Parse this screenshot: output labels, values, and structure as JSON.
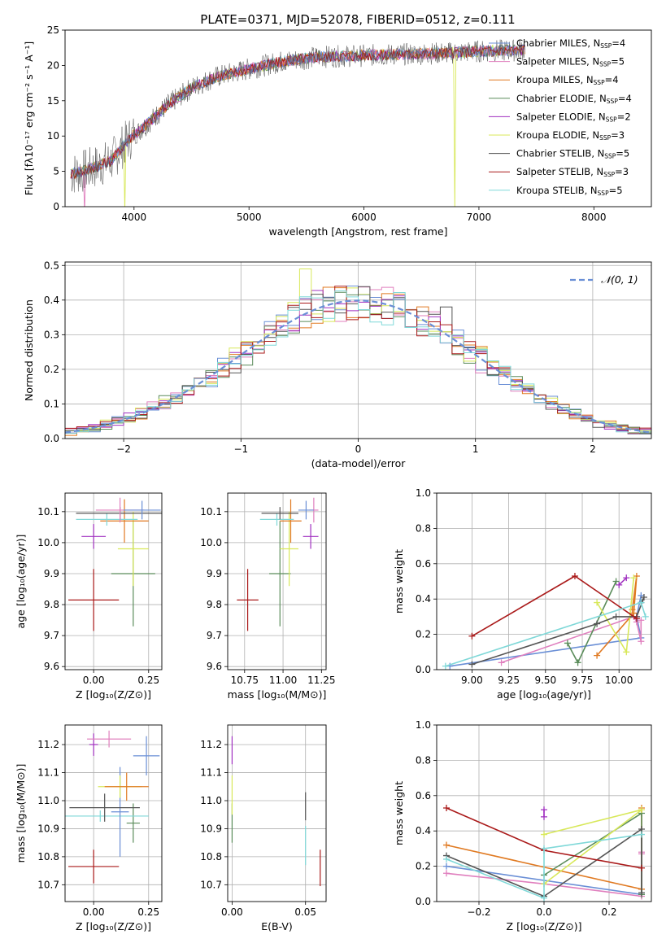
{
  "title": "PLATE=0371, MJD=52078, FIBERID=0512, z=0.111",
  "colors": {
    "Chabrier MILES": "#6a8fd6",
    "Salpeter MILES": "#e07fbe",
    "Kroupa MILES": "#e07a22",
    "Chabrier ELODIE": "#5a8c5a",
    "Salpeter ELODIE": "#a030c0",
    "Kroupa ELODIE": "#d8e85a",
    "Chabrier STELIB": "#555555",
    "Salpeter STELIB": "#aa1a1a",
    "Kroupa STELIB": "#7fd8d8"
  },
  "chart_data": [
    {
      "id": "spectrum",
      "type": "line",
      "xlabel": "wavelength [Angstrom, rest frame]",
      "ylabel": "Flux [fλ10⁻¹⁷ erg cm⁻² s⁻¹ A⁻¹]",
      "xlim": [
        3400,
        8500
      ],
      "ylim": [
        0,
        25
      ],
      "xticks": [
        4000,
        5000,
        6000,
        7000,
        8000
      ],
      "yticks": [
        0,
        5,
        10,
        15,
        20,
        25
      ],
      "grid": false,
      "legend": "upper right",
      "legend_entries": [
        {
          "label": "Chabrier MILES, N",
          "sub": "SSP",
          "suffix": "=4",
          "model": "Chabrier MILES"
        },
        {
          "label": "Salpeter MILES, N",
          "sub": "SSP",
          "suffix": "=5",
          "model": "Salpeter MILES"
        },
        {
          "label": "Kroupa MILES, N",
          "sub": "SSP",
          "suffix": "=4",
          "model": "Kroupa MILES"
        },
        {
          "label": "Chabrier ELODIE, N",
          "sub": "SSP",
          "suffix": "=4",
          "model": "Chabrier ELODIE"
        },
        {
          "label": "Salpeter ELODIE, N",
          "sub": "SSP",
          "suffix": "=2",
          "model": "Salpeter ELODIE"
        },
        {
          "label": "Kroupa ELODIE, N",
          "sub": "SSP",
          "suffix": "=3",
          "model": "Kroupa ELODIE"
        },
        {
          "label": "Chabrier STELIB, N",
          "sub": "SSP",
          "suffix": "=5",
          "model": "Chabrier STELIB"
        },
        {
          "label": "Salpeter STELIB, N",
          "sub": "SSP",
          "suffix": "=3",
          "model": "Salpeter STELIB"
        },
        {
          "label": "Kroupa STELIB, N",
          "sub": "SSP",
          "suffix": "=5",
          "model": "Kroupa STELIB"
        }
      ],
      "continuum": {
        "x": [
          3450,
          3600,
          3800,
          3950,
          4100,
          4300,
          4500,
          4700,
          5000,
          5300,
          5600,
          6000,
          6400,
          6800,
          7000,
          7200,
          7400
        ],
        "y": [
          4.6,
          5.2,
          6.5,
          9.5,
          11.5,
          14.5,
          16.8,
          18.3,
          19.5,
          20.6,
          21.2,
          21.4,
          21.6,
          21.8,
          22.0,
          22.1,
          22.2
        ]
      },
      "drops": [
        {
          "model": "Salpeter MILES",
          "x": 3570
        },
        {
          "model": "Kroupa ELODIE",
          "x": 3920
        },
        {
          "model": "Kroupa ELODIE",
          "x": 6790
        },
        {
          "model": "Salpeter STELIB",
          "x": 7410
        }
      ]
    },
    {
      "id": "residuals",
      "type": "histogram",
      "xlabel": "(data-model)/error",
      "ylabel": "Normed distribution",
      "xlim": [
        -2.5,
        2.5
      ],
      "ylim": [
        0,
        0.51
      ],
      "xticks": [
        -2,
        -1,
        0,
        1,
        2
      ],
      "yticks": [
        0.0,
        0.1,
        0.2,
        0.3,
        0.4,
        0.5
      ],
      "grid": true,
      "legend": "upper right",
      "reference_curve": {
        "label": "𝒩(0, 1)",
        "color": "#6a8fd6",
        "style": "dashed"
      },
      "bin_width": 0.1,
      "hist_peaks": [
        {
          "model": "Kroupa ELODIE",
          "x": -0.45,
          "y": 0.49
        },
        {
          "model": "Salpeter MILES",
          "x": 0.15,
          "y": 0.43
        },
        {
          "model": "Chabrier STELIB",
          "x": 0.75,
          "y": 0.38
        }
      ]
    },
    {
      "id": "age_vs_Z",
      "type": "errorbar",
      "xlabel": "Z [log₁₀(Z/Z⊙)]",
      "ylabel": "age  [log₁₀(age/yr)]",
      "xlim": [
        -0.13,
        0.31
      ],
      "ylim": [
        9.59,
        10.16
      ],
      "xticks": [
        0.0,
        0.25
      ],
      "yticks": [
        9.6,
        9.7,
        9.8,
        9.9,
        10.0,
        10.1
      ],
      "grid": true,
      "points": [
        {
          "model": "Salpeter STELIB",
          "x": 0.0,
          "y": 9.815,
          "xerr": 0.115,
          "yerr": 0.1
        },
        {
          "model": "Chabrier ELODIE",
          "x": 0.18,
          "y": 9.9,
          "xerr": 0.1,
          "yerr": 0.17
        },
        {
          "model": "Kroupa ELODIE",
          "x": 0.18,
          "y": 9.98,
          "xerr": 0.07,
          "yerr": 0.12
        },
        {
          "model": "Salpeter ELODIE",
          "x": 0.0,
          "y": 10.02,
          "xerr": 0.055,
          "yerr": 0.04
        },
        {
          "model": "Kroupa MILES",
          "x": 0.14,
          "y": 10.07,
          "xerr": 0.11,
          "yerr": 0.07
        },
        {
          "model": "Kroupa STELIB",
          "x": 0.06,
          "y": 10.075,
          "xerr": 0.14,
          "yerr": 0.02
        },
        {
          "model": "Chabrier STELIB",
          "x": 0.12,
          "y": 10.095,
          "xerr": 0.2,
          "yerr": 0.02
        },
        {
          "model": "Salpeter MILES",
          "x": 0.12,
          "y": 10.105,
          "xerr": 0.11,
          "yerr": 0.04
        },
        {
          "model": "Chabrier MILES",
          "x": 0.22,
          "y": 10.105,
          "xerr": 0.085,
          "yerr": 0.03
        }
      ]
    },
    {
      "id": "age_vs_mass",
      "type": "errorbar",
      "xlabel": "mass [log₁₀(M/M⊙)]",
      "ylabel": "",
      "xlim": [
        10.64,
        11.28
      ],
      "ylim": [
        9.59,
        10.16
      ],
      "xticks": [
        10.75,
        11.0,
        11.25
      ],
      "yticks": [
        9.6,
        9.7,
        9.8,
        9.9,
        10.0,
        10.1
      ],
      "grid": true,
      "points": [
        {
          "model": "Salpeter STELIB",
          "x": 10.77,
          "y": 9.815,
          "xerr": 0.07,
          "yerr": 0.1
        },
        {
          "model": "Chabrier ELODIE",
          "x": 10.98,
          "y": 9.9,
          "xerr": 0.07,
          "yerr": 0.17
        },
        {
          "model": "Kroupa ELODIE",
          "x": 11.04,
          "y": 9.98,
          "xerr": 0.06,
          "yerr": 0.12
        },
        {
          "model": "Salpeter ELODIE",
          "x": 11.18,
          "y": 10.02,
          "xerr": 0.05,
          "yerr": 0.04
        },
        {
          "model": "Kroupa MILES",
          "x": 11.05,
          "y": 10.07,
          "xerr": 0.07,
          "yerr": 0.07
        },
        {
          "model": "Kroupa STELIB",
          "x": 10.96,
          "y": 10.075,
          "xerr": 0.11,
          "yerr": 0.02
        },
        {
          "model": "Chabrier STELIB",
          "x": 10.98,
          "y": 10.095,
          "xerr": 0.12,
          "yerr": 0.02
        },
        {
          "model": "Salpeter MILES",
          "x": 11.2,
          "y": 10.105,
          "xerr": 0.03,
          "yerr": 0.04
        },
        {
          "model": "Chabrier MILES",
          "x": 11.15,
          "y": 10.105,
          "xerr": 0.05,
          "yerr": 0.03
        }
      ]
    },
    {
      "id": "weight_vs_age",
      "type": "line",
      "xlabel": "age  [log₁₀(age/yr)]",
      "ylabel": "mass weight",
      "xlim": [
        8.76,
        10.22
      ],
      "ylim": [
        0,
        1.0
      ],
      "xticks": [
        9.0,
        9.25,
        9.5,
        9.75,
        10.0
      ],
      "yticks": [
        0.0,
        0.2,
        0.4,
        0.6,
        0.8,
        1.0
      ],
      "grid": true,
      "series": [
        {
          "model": "Chabrier MILES",
          "x": [
            8.85,
            10.15,
            10.12,
            10.15
          ],
          "y": [
            0.02,
            0.18,
            0.3,
            0.42
          ]
        },
        {
          "model": "Salpeter MILES",
          "x": [
            9.2,
            10.1,
            10.12,
            10.15,
            10.15
          ],
          "y": [
            0.04,
            0.3,
            0.27,
            0.16,
            0.28
          ]
        },
        {
          "model": "Kroupa MILES",
          "x": [
            9.85,
            10.1,
            10.12,
            10.09
          ],
          "y": [
            0.08,
            0.32,
            0.53,
            0.34
          ]
        },
        {
          "model": "Chabrier ELODIE",
          "x": [
            9.65,
            9.72,
            9.98
          ],
          "y": [
            0.15,
            0.04,
            0.5
          ]
        },
        {
          "model": "Salpeter ELODIE",
          "x": [
            10.0,
            10.05
          ],
          "y": [
            0.48,
            0.52
          ]
        },
        {
          "model": "Kroupa ELODIE",
          "x": [
            9.85,
            10.05,
            10.1
          ],
          "y": [
            0.38,
            0.1,
            0.52
          ]
        },
        {
          "model": "Chabrier STELIB",
          "x": [
            9.0,
            9.85,
            9.98,
            10.12,
            10.17,
            10.15
          ],
          "y": [
            0.03,
            0.26,
            0.3,
            0.3,
            0.41,
            0.38
          ]
        },
        {
          "model": "Salpeter STELIB",
          "x": [
            9.0,
            9.7,
            10.12
          ],
          "y": [
            0.19,
            0.53,
            0.29
          ]
        },
        {
          "model": "Kroupa STELIB",
          "x": [
            8.82,
            10.15,
            10.18
          ],
          "y": [
            0.02,
            0.38,
            0.3
          ]
        }
      ]
    },
    {
      "id": "mass_vs_Z",
      "type": "errorbar",
      "xlabel": "Z [log₁₀(Z/Z⊙)]",
      "ylabel": "mass [log₁₀(M/M⊙)]",
      "xlim": [
        -0.13,
        0.31
      ],
      "ylim": [
        10.64,
        11.27
      ],
      "xticks": [
        0.0,
        0.25
      ],
      "yticks": [
        10.7,
        10.8,
        10.9,
        11.0,
        11.1,
        11.2
      ],
      "grid": true,
      "points": [
        {
          "model": "Salpeter STELIB",
          "x": 0.0,
          "y": 10.765,
          "xerr": 0.115,
          "yerr": 0.06
        },
        {
          "model": "Chabrier ELODIE",
          "x": 0.18,
          "y": 10.92,
          "xerr": 0.03,
          "yerr": 0.07
        },
        {
          "model": "Kroupa STELIB",
          "x": 0.03,
          "y": 10.945,
          "xerr": 0.22,
          "yerr": 0.02
        },
        {
          "model": "Chabrier MILES",
          "x": 0.12,
          "y": 10.96,
          "xerr": 0.04,
          "yerr": 0.16
        },
        {
          "model": "Chabrier STELIB",
          "x": 0.05,
          "y": 10.975,
          "xerr": 0.16,
          "yerr": 0.05
        },
        {
          "model": "Kroupa ELODIE",
          "x": 0.12,
          "y": 11.05,
          "xerr": 0.1,
          "yerr": 0.04
        },
        {
          "model": "Kroupa MILES",
          "x": 0.15,
          "y": 11.05,
          "xerr": 0.1,
          "yerr": 0.05
        },
        {
          "model": "Chabrier MILES",
          "x": 0.24,
          "y": 11.16,
          "xerr": 0.06,
          "yerr": 0.07
        },
        {
          "model": "Salpeter ELODIE",
          "x": 0.0,
          "y": 11.2,
          "xerr": 0.02,
          "yerr": 0.04
        },
        {
          "model": "Salpeter MILES",
          "x": 0.07,
          "y": 11.22,
          "xerr": 0.1,
          "yerr": 0.03
        }
      ]
    },
    {
      "id": "mass_vs_ebv",
      "type": "errorbar",
      "xlabel": "E(B-V)",
      "ylabel": "",
      "xlim": [
        -0.003,
        0.064
      ],
      "ylim": [
        10.64,
        11.27
      ],
      "xticks": [
        0.0,
        0.05
      ],
      "yticks": [
        10.7,
        10.8,
        10.9,
        11.0,
        11.1,
        11.2
      ],
      "grid": true,
      "points": [
        {
          "model": "Salpeter STELIB",
          "x": 0.06,
          "y": 10.76,
          "xerr": 0.0,
          "yerr": 0.065
        },
        {
          "model": "Chabrier ELODIE",
          "x": 0.0,
          "y": 10.92,
          "xerr": 0.0,
          "yerr": 0.07
        },
        {
          "model": "Kroupa STELIB",
          "x": 0.05,
          "y": 10.84,
          "xerr": 0.0,
          "yerr": 0.07
        },
        {
          "model": "Chabrier STELIB",
          "x": 0.05,
          "y": 10.98,
          "xerr": 0.0,
          "yerr": 0.05
        },
        {
          "model": "Kroupa ELODIE",
          "x": 0.0,
          "y": 11.02,
          "xerr": 0.0,
          "yerr": 0.07
        },
        {
          "model": "Salpeter ELODIE",
          "x": 0.0,
          "y": 11.18,
          "xerr": 0.0,
          "yerr": 0.05
        }
      ]
    },
    {
      "id": "weight_vs_Z",
      "type": "line",
      "xlabel": "Z [log₁₀(Z/Z⊙)]",
      "ylabel": "mass weight",
      "xlim": [
        -0.33,
        0.33
      ],
      "ylim": [
        0,
        1.0
      ],
      "xticks": [
        -0.2,
        0.0,
        0.2
      ],
      "yticks": [
        0.0,
        0.2,
        0.4,
        0.6,
        0.8,
        1.0
      ],
      "grid": true,
      "series": [
        {
          "model": "Chabrier MILES",
          "x": [
            -0.3,
            0.3
          ],
          "y": [
            0.2,
            0.04
          ]
        },
        {
          "model": "Salpeter MILES",
          "x": [
            -0.3,
            0.0,
            0.3,
            0.3,
            0.3
          ],
          "y": [
            0.16,
            0.1,
            0.03,
            0.27,
            0.28
          ]
        },
        {
          "model": "Kroupa MILES",
          "x": [
            -0.3,
            0.3,
            0.3
          ],
          "y": [
            0.32,
            0.07,
            0.53
          ]
        },
        {
          "model": "Chabrier ELODIE",
          "x": [
            0.0,
            0.3,
            0.3
          ],
          "y": [
            0.15,
            0.5,
            0.04
          ]
        },
        {
          "model": "Salpeter ELODIE",
          "x": [
            0.0,
            0.0
          ],
          "y": [
            0.48,
            0.52
          ]
        },
        {
          "model": "Kroupa ELODIE",
          "x": [
            0.0,
            0.3,
            0.0
          ],
          "y": [
            0.1,
            0.52,
            0.38
          ]
        },
        {
          "model": "Chabrier STELIB",
          "x": [
            -0.3,
            0.0,
            0.3,
            0.3
          ],
          "y": [
            0.26,
            0.03,
            0.41,
            0.05
          ]
        },
        {
          "model": "Salpeter STELIB",
          "x": [
            -0.3,
            0.0,
            0.3
          ],
          "y": [
            0.53,
            0.29,
            0.19
          ]
        },
        {
          "model": "Kroupa STELIB",
          "x": [
            -0.3,
            0.0,
            0.0,
            0.3
          ],
          "y": [
            0.24,
            0.02,
            0.3,
            0.38
          ]
        }
      ]
    }
  ]
}
